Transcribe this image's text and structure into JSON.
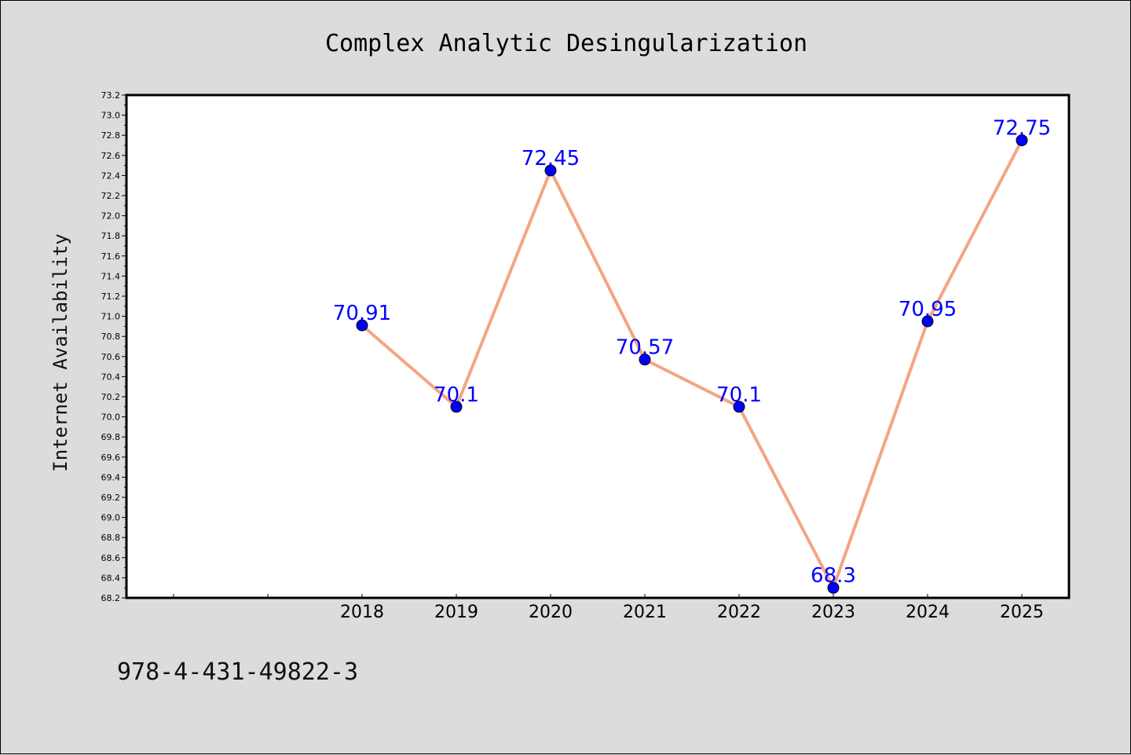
{
  "chart_data": {
    "type": "line",
    "title": "Complex Analytic Desingularization",
    "xlabel": "",
    "ylabel": "Internet Availability",
    "categories": [
      "",
      "",
      "2018",
      "2019",
      "2020",
      "2021",
      "2022",
      "2023",
      "2024",
      "2025"
    ],
    "series": [
      {
        "values": [
          null,
          null,
          70.91,
          70.1,
          72.45,
          70.57,
          70.1,
          68.3,
          70.95,
          72.75
        ],
        "labels": [
          "",
          "",
          "70.91",
          "70.1",
          "72.45",
          "70.57",
          "70.1",
          "68.3",
          "70.95",
          "72.75"
        ]
      }
    ],
    "ylim": [
      68.2,
      73.2
    ],
    "yticks": [
      "68.2",
      "68.4",
      "68.6",
      "68.8",
      "69.0",
      "69.2",
      "69.4",
      "69.6",
      "69.8",
      "70.0",
      "70.2",
      "70.4",
      "70.6",
      "70.8",
      "71.0",
      "71.2",
      "71.4",
      "71.6",
      "71.8",
      "72.0",
      "72.2",
      "72.4",
      "72.6",
      "72.8",
      "73.0",
      "73.2"
    ],
    "grid": false,
    "line_color": "#f4a582",
    "marker_color": "#0000ff",
    "label_color": "#0000ff"
  },
  "footer": {
    "isbn": "978-4-431-49822-3"
  }
}
